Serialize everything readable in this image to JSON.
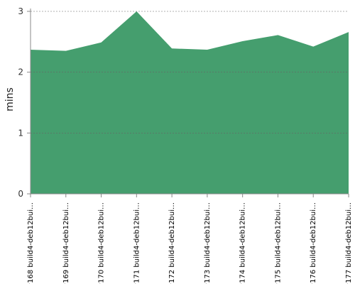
{
  "chart_data": {
    "type": "area",
    "y_label": "mins",
    "categories": [
      "#168 build4-deb12bui…",
      "#169 build4-deb12bui…",
      "#170 build4-deb12bui…",
      "#171 build4-deb12bui…",
      "#172 build4-deb12bui…",
      "#173 build4-deb12bui…",
      "#174 build4-deb12bui…",
      "#175 build4-deb12bui…",
      "#176 build4-deb12bui…",
      "#177 build4-deb12bui…"
    ],
    "values": [
      2.37,
      2.35,
      2.49,
      3.0,
      2.39,
      2.37,
      2.51,
      2.61,
      2.42,
      2.66
    ],
    "color": "#459e6e",
    "ylim": [
      0,
      3
    ],
    "yticks": [
      0,
      1,
      2,
      3
    ],
    "grid": true
  }
}
